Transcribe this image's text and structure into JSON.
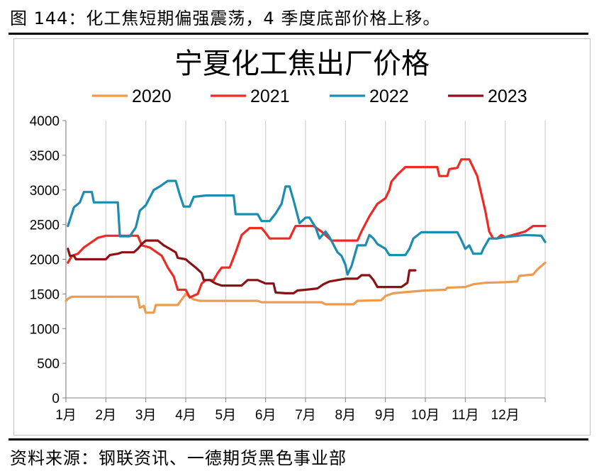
{
  "figure": {
    "caption": "图 144：化工焦短期偏强震荡，4 季度底部价格上移。",
    "source": "资料来源：钢联资讯、一德期货黑色事业部"
  },
  "chart_data": {
    "type": "line",
    "title": "宁夏化工焦出厂价格",
    "xlabel": "",
    "ylabel": "",
    "x_ticks": [
      "1月",
      "2月",
      "3月",
      "4月",
      "5月",
      "6月",
      "7月",
      "8月",
      "9月",
      "10月",
      "11月",
      "12月"
    ],
    "x_range": [
      1,
      13
    ],
    "y_ticks": [
      0,
      500,
      1000,
      1500,
      2000,
      2500,
      3000,
      3500,
      4000
    ],
    "ylim": [
      0,
      4000
    ],
    "grid": "vertical",
    "legend": "top",
    "series": [
      {
        "name": "2020",
        "color": "#ED9B4E",
        "points": [
          [
            1.0,
            1400
          ],
          [
            1.05,
            1430
          ],
          [
            1.15,
            1460
          ],
          [
            2.0,
            1460
          ],
          [
            2.8,
            1460
          ],
          [
            2.85,
            1300
          ],
          [
            2.95,
            1330
          ],
          [
            3.0,
            1230
          ],
          [
            3.2,
            1230
          ],
          [
            3.25,
            1340
          ],
          [
            3.8,
            1340
          ],
          [
            4.0,
            1500
          ],
          [
            4.2,
            1420
          ],
          [
            4.35,
            1400
          ],
          [
            5.8,
            1400
          ],
          [
            5.9,
            1380
          ],
          [
            7.4,
            1380
          ],
          [
            7.5,
            1350
          ],
          [
            8.2,
            1350
          ],
          [
            8.3,
            1400
          ],
          [
            8.9,
            1410
          ],
          [
            9.0,
            1470
          ],
          [
            9.2,
            1510
          ],
          [
            9.6,
            1530
          ],
          [
            10.0,
            1550
          ],
          [
            10.5,
            1560
          ],
          [
            10.55,
            1590
          ],
          [
            11.0,
            1600
          ],
          [
            11.2,
            1640
          ],
          [
            11.5,
            1660
          ],
          [
            12.0,
            1670
          ],
          [
            12.3,
            1680
          ],
          [
            12.35,
            1760
          ],
          [
            12.7,
            1780
          ],
          [
            12.8,
            1850
          ],
          [
            13.0,
            1950
          ]
        ]
      },
      {
        "name": "2021",
        "color": "#EE2A24",
        "points": [
          [
            1.05,
            1950
          ],
          [
            1.15,
            2050
          ],
          [
            1.3,
            2080
          ],
          [
            1.45,
            2170
          ],
          [
            1.65,
            2250
          ],
          [
            1.8,
            2310
          ],
          [
            2.0,
            2340
          ],
          [
            2.5,
            2340
          ],
          [
            2.8,
            2340
          ],
          [
            2.9,
            2200
          ],
          [
            3.1,
            2170
          ],
          [
            3.4,
            2050
          ],
          [
            3.55,
            1880
          ],
          [
            3.7,
            1750
          ],
          [
            3.8,
            1560
          ],
          [
            4.0,
            1560
          ],
          [
            4.1,
            1450
          ],
          [
            4.3,
            1500
          ],
          [
            4.4,
            1650
          ],
          [
            4.5,
            1700
          ],
          [
            4.7,
            1700
          ],
          [
            4.8,
            1800
          ],
          [
            4.9,
            1880
          ],
          [
            5.1,
            1880
          ],
          [
            5.25,
            2100
          ],
          [
            5.4,
            2350
          ],
          [
            5.6,
            2450
          ],
          [
            5.9,
            2450
          ],
          [
            6.0,
            2380
          ],
          [
            6.1,
            2300
          ],
          [
            6.6,
            2300
          ],
          [
            6.75,
            2480
          ],
          [
            7.2,
            2480
          ],
          [
            7.3,
            2440
          ],
          [
            7.4,
            2400
          ],
          [
            7.65,
            2270
          ],
          [
            8.3,
            2270
          ],
          [
            8.4,
            2400
          ],
          [
            8.6,
            2620
          ],
          [
            8.8,
            2800
          ],
          [
            9.0,
            2880
          ],
          [
            9.1,
            3000
          ],
          [
            9.15,
            3120
          ],
          [
            9.3,
            3220
          ],
          [
            9.5,
            3330
          ],
          [
            10.0,
            3330
          ],
          [
            10.3,
            3330
          ],
          [
            10.35,
            3200
          ],
          [
            10.55,
            3200
          ],
          [
            10.6,
            3300
          ],
          [
            10.8,
            3320
          ],
          [
            10.9,
            3440
          ],
          [
            11.1,
            3440
          ],
          [
            11.3,
            3200
          ],
          [
            11.5,
            2700
          ],
          [
            11.6,
            2400
          ],
          [
            11.7,
            2300
          ],
          [
            11.8,
            2300
          ],
          [
            11.9,
            2350
          ],
          [
            12.0,
            2320
          ],
          [
            12.5,
            2400
          ],
          [
            12.7,
            2480
          ],
          [
            13.0,
            2480
          ]
        ]
      },
      {
        "name": "2022",
        "color": "#1C8CB0",
        "points": [
          [
            1.05,
            2480
          ],
          [
            1.2,
            2750
          ],
          [
            1.35,
            2820
          ],
          [
            1.45,
            2970
          ],
          [
            1.65,
            2970
          ],
          [
            1.7,
            2820
          ],
          [
            2.3,
            2820
          ],
          [
            2.35,
            2330
          ],
          [
            2.6,
            2330
          ],
          [
            2.75,
            2460
          ],
          [
            2.85,
            2700
          ],
          [
            3.0,
            2780
          ],
          [
            3.2,
            3000
          ],
          [
            3.35,
            3050
          ],
          [
            3.55,
            3130
          ],
          [
            3.75,
            3130
          ],
          [
            3.85,
            2930
          ],
          [
            3.95,
            2760
          ],
          [
            4.1,
            2760
          ],
          [
            4.2,
            2900
          ],
          [
            4.5,
            2920
          ],
          [
            5.2,
            2920
          ],
          [
            5.25,
            2650
          ],
          [
            5.8,
            2650
          ],
          [
            5.9,
            2550
          ],
          [
            6.1,
            2550
          ],
          [
            6.25,
            2660
          ],
          [
            6.4,
            2800
          ],
          [
            6.5,
            3050
          ],
          [
            6.6,
            3050
          ],
          [
            6.7,
            2850
          ],
          [
            6.85,
            2520
          ],
          [
            7.0,
            2600
          ],
          [
            7.1,
            2600
          ],
          [
            7.25,
            2460
          ],
          [
            7.35,
            2300
          ],
          [
            7.5,
            2400
          ],
          [
            7.6,
            2320
          ],
          [
            7.8,
            2100
          ],
          [
            7.9,
            2050
          ],
          [
            8.0,
            1920
          ],
          [
            8.05,
            1780
          ],
          [
            8.15,
            1900
          ],
          [
            8.3,
            2200
          ],
          [
            8.5,
            2200
          ],
          [
            8.6,
            2350
          ],
          [
            8.7,
            2300
          ],
          [
            8.8,
            2220
          ],
          [
            9.0,
            2150
          ],
          [
            9.1,
            2060
          ],
          [
            9.5,
            2060
          ],
          [
            9.6,
            2150
          ],
          [
            9.7,
            2300
          ],
          [
            9.9,
            2390
          ],
          [
            10.5,
            2390
          ],
          [
            10.8,
            2390
          ],
          [
            10.9,
            2280
          ],
          [
            11.0,
            2150
          ],
          [
            11.1,
            2200
          ],
          [
            11.2,
            2080
          ],
          [
            11.4,
            2080
          ],
          [
            11.45,
            2150
          ],
          [
            11.6,
            2300
          ],
          [
            11.8,
            2300
          ],
          [
            12.0,
            2320
          ],
          [
            12.5,
            2350
          ],
          [
            12.9,
            2340
          ],
          [
            13.0,
            2250
          ]
        ]
      },
      {
        "name": "2023",
        "color": "#8A1214",
        "points": [
          [
            1.05,
            2150
          ],
          [
            1.1,
            2050
          ],
          [
            1.2,
            2050
          ],
          [
            1.25,
            2000
          ],
          [
            2.0,
            2000
          ],
          [
            2.1,
            2060
          ],
          [
            2.3,
            2080
          ],
          [
            2.4,
            2100
          ],
          [
            2.7,
            2100
          ],
          [
            2.8,
            2150
          ],
          [
            2.9,
            2220
          ],
          [
            3.0,
            2270
          ],
          [
            3.3,
            2270
          ],
          [
            3.45,
            2200
          ],
          [
            3.6,
            2150
          ],
          [
            3.75,
            2100
          ],
          [
            3.8,
            2020
          ],
          [
            4.0,
            2000
          ],
          [
            4.1,
            1950
          ],
          [
            4.25,
            1880
          ],
          [
            4.4,
            1800
          ],
          [
            4.45,
            1700
          ],
          [
            4.6,
            1700
          ],
          [
            4.75,
            1650
          ],
          [
            4.9,
            1620
          ],
          [
            5.4,
            1620
          ],
          [
            5.55,
            1700
          ],
          [
            5.8,
            1700
          ],
          [
            6.0,
            1650
          ],
          [
            6.2,
            1650
          ],
          [
            6.25,
            1520
          ],
          [
            6.5,
            1510
          ],
          [
            6.7,
            1510
          ],
          [
            6.8,
            1550
          ],
          [
            7.0,
            1560
          ],
          [
            7.3,
            1580
          ],
          [
            7.45,
            1640
          ],
          [
            7.6,
            1680
          ],
          [
            8.0,
            1720
          ],
          [
            8.3,
            1720
          ],
          [
            8.4,
            1770
          ],
          [
            8.6,
            1770
          ],
          [
            8.7,
            1700
          ],
          [
            8.8,
            1600
          ],
          [
            9.4,
            1600
          ],
          [
            9.55,
            1660
          ],
          [
            9.6,
            1840
          ],
          [
            9.75,
            1840
          ]
        ]
      }
    ]
  }
}
